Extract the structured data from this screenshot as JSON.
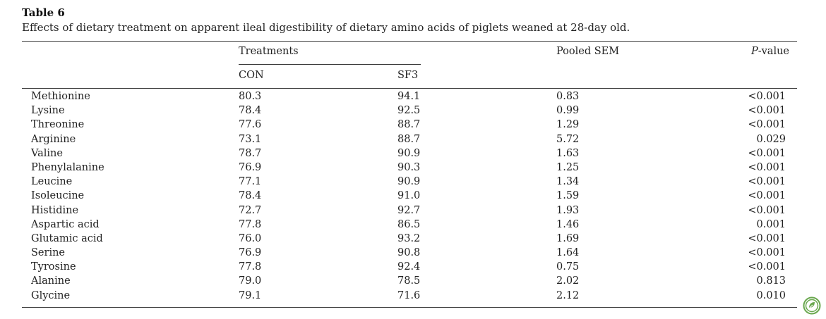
{
  "caption": {
    "label": "Table 6",
    "text": "Effects of dietary treatment on apparent ileal digestibility of dietary amino acids of piglets weaned at 28-day old."
  },
  "header": {
    "treatments": "Treatments",
    "con": "CON",
    "sf3": "SF3",
    "pooled_sem": "Pooled SEM",
    "p_letter": "P",
    "p_rest": "-value"
  },
  "rows": [
    {
      "name": "Methionine",
      "con": "80.3",
      "sf3": "94.1",
      "sem": "0.83",
      "p": "<0.001"
    },
    {
      "name": "Lysine",
      "con": "78.4",
      "sf3": "92.5",
      "sem": "0.99",
      "p": "<0.001"
    },
    {
      "name": "Threonine",
      "con": "77.6",
      "sf3": "88.7",
      "sem": "1.29",
      "p": "<0.001"
    },
    {
      "name": "Arginine",
      "con": "73.1",
      "sf3": "88.7",
      "sem": "5.72",
      "p": "0.029"
    },
    {
      "name": "Valine",
      "con": "78.7",
      "sf3": "90.9",
      "sem": "1.63",
      "p": "<0.001"
    },
    {
      "name": "Phenylalanine",
      "con": "76.9",
      "sf3": "90.3",
      "sem": "1.25",
      "p": "<0.001"
    },
    {
      "name": "Leucine",
      "con": "77.1",
      "sf3": "90.9",
      "sem": "1.34",
      "p": "<0.001"
    },
    {
      "name": "Isoleucine",
      "con": "78.4",
      "sf3": "91.0",
      "sem": "1.59",
      "p": "<0.001"
    },
    {
      "name": "Histidine",
      "con": "72.7",
      "sf3": "92.7",
      "sem": "1.93",
      "p": "<0.001"
    },
    {
      "name": "Aspartic acid",
      "con": "77.8",
      "sf3": "86.5",
      "sem": "1.46",
      "p": "0.001"
    },
    {
      "name": "Glutamic acid",
      "con": "76.0",
      "sf3": "93.2",
      "sem": "1.69",
      "p": "<0.001"
    },
    {
      "name": "Serine",
      "con": "76.9",
      "sf3": "90.8",
      "sem": "1.64",
      "p": "<0.001"
    },
    {
      "name": "Tyrosine",
      "con": "77.8",
      "sf3": "92.4",
      "sem": "0.75",
      "p": "<0.001"
    },
    {
      "name": "Alanine",
      "con": "79.0",
      "sf3": "78.5",
      "sem": "2.02",
      "p": "0.813"
    },
    {
      "name": "Glycine",
      "con": "79.1",
      "sf3": "71.6",
      "sem": "2.12",
      "p": "0.010"
    }
  ],
  "icons": {
    "corner_logo": "leaf-badge-icon"
  },
  "colors": {
    "text": "#222222",
    "rule": "#3a3a3a",
    "logo": "#6aa84f"
  }
}
